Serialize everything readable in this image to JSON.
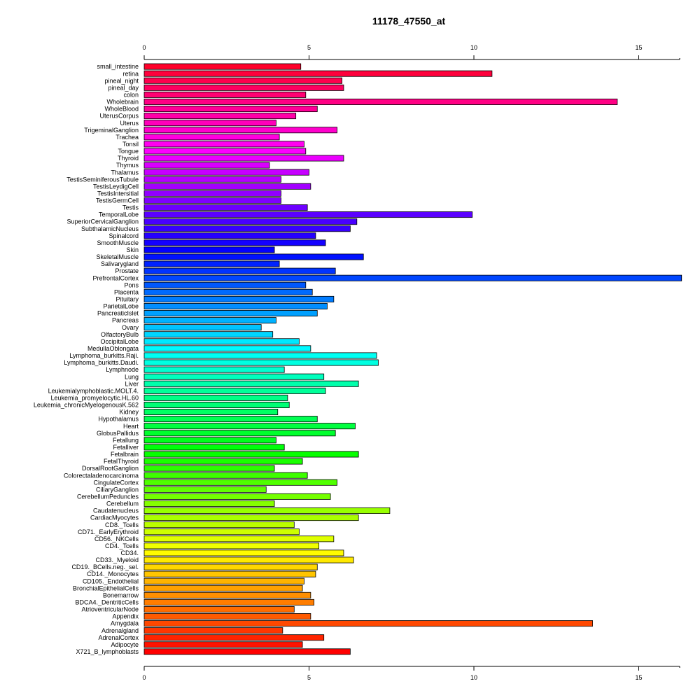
{
  "chart_data": {
    "type": "bar",
    "orientation": "horizontal",
    "title": "11178_47550_at",
    "xlabel": "",
    "ylabel": "",
    "xlim": [
      0,
      16.3
    ],
    "xticks": [
      0,
      5,
      10,
      15
    ],
    "axes": [
      "top",
      "bottom"
    ],
    "grid": false,
    "categories": [
      "small_intestine",
      "retina",
      "pineal_night",
      "pineal_day",
      "colon",
      "Wholebrain",
      "WholeBlood",
      "UterusCorpus",
      "Uterus",
      "TrigeminalGanglion",
      "Trachea",
      "Tonsil",
      "Tongue",
      "Thyroid",
      "Thymus",
      "Thalamus",
      "TestisSeminiferousTubule",
      "TestisLeydigCell",
      "TestisIntersitial",
      "TestisGermCell",
      "Testis",
      "TemporalLobe",
      "SuperiorCervicalGanglion",
      "SubthalamicNucleus",
      "Spinalcord",
      "SmoothMuscle",
      "Skin",
      "SkeletalMuscle",
      "Salivarygland",
      "Prostate",
      "PrefrontalCortex",
      "Pons",
      "Placenta",
      "Pituitary",
      "ParietalLobe",
      "PancreaticIslet",
      "Pancreas",
      "Ovary",
      "OlfactoryBulb",
      "OccipitalLobe",
      "MedullaOblongata",
      "Lymphoma_burkitts.Raji.",
      "Lymphoma_burkitts.Daudi.",
      "Lymphnode",
      "Lung",
      "Liver",
      "Leukemialymphoblastic.MOLT.4.",
      "Leukemia_promyelocytic.HL.60",
      "Leukemia_chronicMyelogenousK.562",
      "Kidney",
      "Hypothalamus",
      "Heart",
      "GlobusPallidus",
      "Fetallung",
      "Fetalliver",
      "Fetalbrain",
      "FetalThyroid",
      "DorsalRootGanglion",
      "Colorectaladenocarcinoma",
      "CingulateCortex",
      "CiliaryGanglion",
      "CerebellumPeduncles",
      "Cerebellum",
      "Caudatenucleus",
      "CardiacMyocytes",
      "CD8._Tcells",
      "CD71._EarlyErythroid",
      "CD56._NKCells",
      "CD4._Tcells",
      "CD34.",
      "CD33._Myeloid",
      "CD19._BCells.neg._sel.",
      "CD14._Monocytes",
      "CD105._Endothelial",
      "BronchialEpithelialCells",
      "Bonemarrow",
      "BDCA4._DentriticCells",
      "AtrioventricularNode",
      "Appendix",
      "Amygdala",
      "Adrenalgland",
      "AdrenalCortex",
      "Adipocyte",
      "X721_B_lymphoblasts"
    ],
    "values": [
      4.75,
      10.55,
      6.0,
      6.05,
      4.9,
      14.35,
      5.25,
      4.6,
      4.0,
      5.85,
      4.1,
      4.85,
      4.9,
      6.05,
      3.8,
      5.0,
      4.15,
      5.05,
      4.15,
      4.15,
      4.95,
      9.95,
      6.45,
      6.25,
      5.2,
      5.5,
      3.95,
      6.65,
      4.1,
      5.8,
      16.3,
      4.9,
      5.1,
      5.75,
      5.55,
      5.25,
      4.0,
      3.55,
      3.9,
      4.7,
      5.05,
      7.05,
      7.1,
      4.25,
      5.45,
      6.5,
      5.5,
      4.35,
      4.4,
      4.05,
      5.25,
      6.4,
      5.8,
      4.0,
      4.25,
      6.5,
      4.8,
      3.95,
      4.95,
      5.85,
      3.7,
      5.65,
      3.95,
      7.45,
      6.5,
      4.55,
      4.7,
      5.75,
      5.3,
      6.05,
      6.35,
      5.25,
      5.2,
      4.85,
      4.8,
      5.05,
      5.15,
      4.55,
      5.05,
      13.6,
      4.2,
      5.45,
      4.8,
      6.25
    ],
    "colors": {
      "hue_start": 350,
      "hue_end": 0,
      "bar_outline": "#000000"
    }
  }
}
